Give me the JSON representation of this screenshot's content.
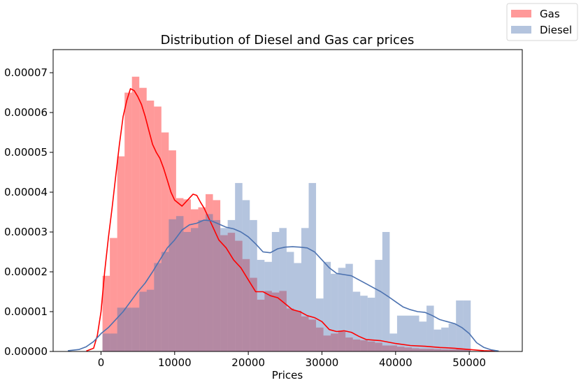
{
  "chart_data": {
    "type": "histogram",
    "title": "Distribution of Diesel and Gas car prices",
    "xlabel": "Prices",
    "ylabel": "",
    "xlim": [
      -6500,
      57200
    ],
    "ylim": [
      0,
      7.58e-05
    ],
    "xticks": [
      0,
      10000,
      20000,
      30000,
      40000,
      50000
    ],
    "yticks": [
      0,
      1e-05,
      2e-05,
      3e-05,
      4e-05,
      5e-05,
      6e-05,
      7e-05
    ],
    "ytick_labels": [
      "0.00000",
      "0.00001",
      "0.00002",
      "0.00003",
      "0.00004",
      "0.00005",
      "0.00006",
      "0.00007"
    ],
    "grid": false,
    "legend_position": "top-right",
    "series": [
      {
        "name": "Gas",
        "color": "#ff0000",
        "bar_color": "#ff9999",
        "bins": {
          "start": 200,
          "width": 1000,
          "values": [
            1.9e-05,
            2.85e-05,
            4.9e-05,
            6.5e-05,
            6.9e-05,
            6.62e-05,
            6.3e-05,
            6.15e-05,
            5.5e-05,
            5.05e-05,
            3.85e-05,
            3.82e-05,
            3.57e-05,
            3.62e-05,
            3.95e-05,
            3.8e-05,
            2.92e-05,
            2.98e-05,
            2.78e-05,
            2.32e-05,
            1.85e-05,
            1.3e-05,
            1.52e-05,
            1.48e-05,
            1.52e-05,
            1.08e-05,
            1.02e-05,
            8.8e-06,
            8e-06,
            6e-06,
            4e-06,
            4.5e-06,
            5e-06,
            3.5e-06,
            3e-06,
            2.8e-06,
            2.5e-06,
            2.2e-06,
            1.5e-06,
            1.5e-06,
            1.2e-06,
            1e-06,
            8e-07,
            7e-07,
            7e-07,
            6e-07,
            5e-07,
            5e-07,
            6e-07,
            5e-07
          ]
        },
        "kde": {
          "x": [
            -2000,
            -1000,
            -500,
            0,
            500,
            1000,
            1500,
            2000,
            2500,
            3000,
            3500,
            4000,
            4500,
            5000,
            5500,
            6000,
            6500,
            7000,
            7500,
            8000,
            8500,
            9000,
            9500,
            10000,
            11000,
            12000,
            12500,
            13000,
            13500,
            14000,
            15000,
            16000,
            17000,
            18000,
            19000,
            20000,
            21000,
            22000,
            23000,
            24000,
            25000,
            26000,
            27000,
            28000,
            29000,
            30000,
            31000,
            32000,
            33000,
            34000,
            35000,
            36000,
            38000,
            40000,
            42000,
            44000,
            46000,
            48000,
            50000,
            52000,
            53500
          ],
          "y": [
            1e-07,
            8e-07,
            4e-06,
            1e-05,
            2e-05,
            2.85e-05,
            3.6e-05,
            4.4e-05,
            5.2e-05,
            5.9e-05,
            6.3e-05,
            6.6e-05,
            6.55e-05,
            6.4e-05,
            6.2e-05,
            5.9e-05,
            5.55e-05,
            5.2e-05,
            5e-05,
            4.85e-05,
            4.6e-05,
            4.3e-05,
            4e-05,
            3.8e-05,
            3.65e-05,
            3.85e-05,
            3.95e-05,
            3.92e-05,
            3.75e-05,
            3.6e-05,
            3.2e-05,
            2.8e-05,
            2.6e-05,
            2.3e-05,
            2.1e-05,
            1.8e-05,
            1.5e-05,
            1.5e-05,
            1.4e-05,
            1.35e-05,
            1.2e-05,
            1.05e-05,
            1e-05,
            9e-06,
            8.5e-06,
            7.5e-06,
            5.5e-06,
            5e-06,
            5.2e-06,
            4.8e-06,
            3.8e-06,
            3e-06,
            2.7e-06,
            2e-06,
            1.5e-06,
            1.3e-06,
            1e-06,
            8e-07,
            5e-07,
            2e-07,
            1e-07
          ]
        }
      },
      {
        "name": "Diesel",
        "color": "#4c72b0",
        "bar_color": "#b0c2de",
        "bins": {
          "start": 200,
          "width": 1000,
          "values": [
            4.5e-06,
            4.5e-06,
            1.1e-05,
            1.1e-05,
            1.1e-05,
            1.5e-05,
            1.55e-05,
            2.22e-05,
            2.5e-05,
            3.32e-05,
            3.4e-05,
            3e-05,
            3.1e-05,
            3.3e-05,
            3.45e-05,
            3.3e-05,
            3.1e-05,
            3.3e-05,
            4.23e-05,
            3.8e-05,
            3.3e-05,
            2.3e-05,
            2.25e-05,
            3e-05,
            3.1e-05,
            2.5e-05,
            2.22e-05,
            3.1e-05,
            4.23e-05,
            1.33e-05,
            2.25e-05,
            1.95e-05,
            2.1e-05,
            2.2e-05,
            1.5e-05,
            1.4e-05,
            1.35e-05,
            2.3e-05,
            3e-05,
            4.5e-06,
            9e-06,
            9e-06,
            9e-06,
            7.5e-06,
            1.15e-05,
            5.5e-06,
            6e-06,
            7e-06,
            1.28e-05,
            1.28e-05
          ]
        },
        "kde": {
          "x": [
            -4500,
            -3000,
            -2000,
            -1000,
            0,
            1000,
            2000,
            3000,
            4000,
            5000,
            6000,
            7000,
            8000,
            9000,
            10000,
            11000,
            12000,
            13000,
            14000,
            15000,
            16000,
            17000,
            18000,
            19000,
            20000,
            21000,
            22000,
            23000,
            24000,
            25000,
            26000,
            27000,
            28000,
            29000,
            30000,
            31000,
            32000,
            33000,
            34000,
            35000,
            36000,
            37000,
            38000,
            39000,
            40000,
            41000,
            42000,
            43000,
            44000,
            45000,
            46000,
            47000,
            48000,
            49000,
            50000,
            51000,
            52000,
            53000,
            54000
          ],
          "y": [
            2e-07,
            5e-07,
            1.2e-06,
            2.5e-06,
            4.5e-06,
            6e-06,
            8e-06,
            1e-05,
            1.25e-05,
            1.5e-05,
            1.72e-05,
            2e-05,
            2.3e-05,
            2.6e-05,
            2.8e-05,
            3.05e-05,
            3.18e-05,
            3.22e-05,
            3.3e-05,
            3.28e-05,
            3.2e-05,
            3.12e-05,
            3.08e-05,
            3e-05,
            2.88e-05,
            2.7e-05,
            2.5e-05,
            2.48e-05,
            2.58e-05,
            2.62e-05,
            2.63e-05,
            2.62e-05,
            2.6e-05,
            2.5e-05,
            2.3e-05,
            2.1e-05,
            1.96e-05,
            1.93e-05,
            1.9e-05,
            1.8e-05,
            1.7e-05,
            1.6e-05,
            1.5e-05,
            1.38e-05,
            1.25e-05,
            1.12e-05,
            1.05e-05,
            1e-05,
            9.8e-06,
            9e-06,
            8e-06,
            7.5e-06,
            7e-06,
            6e-06,
            4.5e-06,
            2.2e-06,
            1e-06,
            4e-07,
            1e-07
          ]
        }
      }
    ]
  }
}
